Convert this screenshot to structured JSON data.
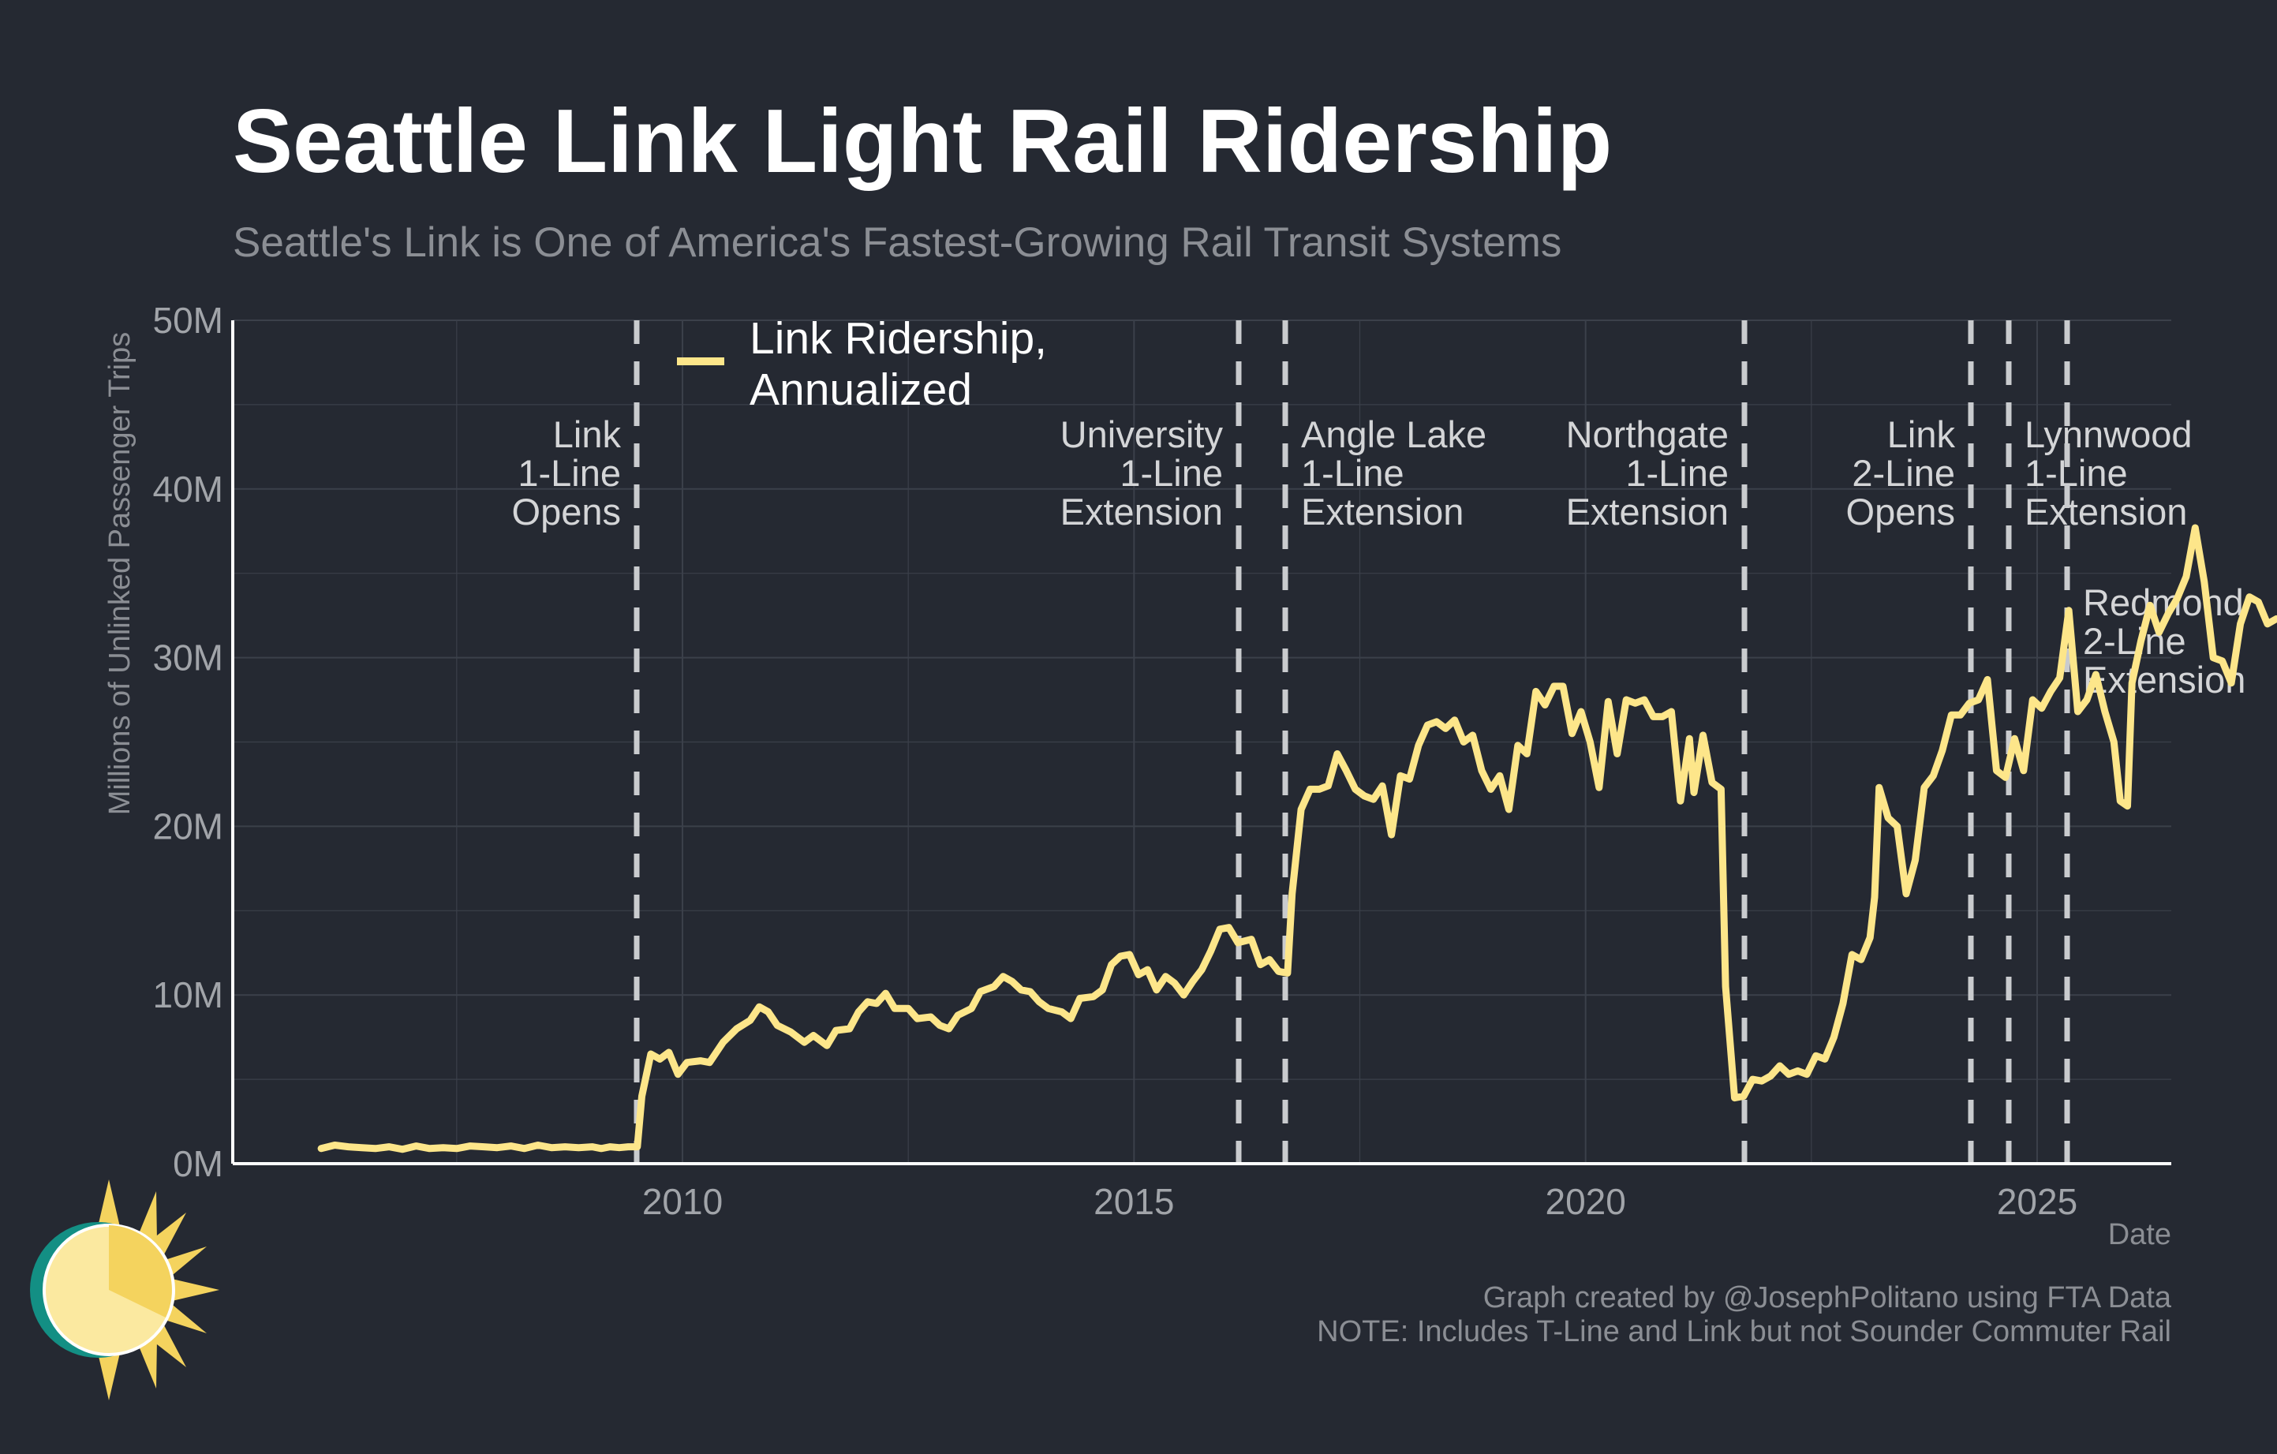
{
  "title": "Seattle Link Light Rail Ridership",
  "subtitle": "Seattle's Link is One of America's Fastest-Growing Rail Transit Systems",
  "caption_line1": "Graph created by @JosephPolitano using FTA Data",
  "caption_line2": "NOTE: Includes T-Line and Link but not Sounder Commuter Rail",
  "colors": {
    "background": "#252932",
    "line": "#fde68a",
    "event_line": "#c9cbce",
    "grid": "#3b404a",
    "axis": "#ffffff"
  },
  "logo_icon": "sun-logo-icon",
  "chart_data": {
    "type": "line",
    "xlabel": "Date",
    "ylabel": "Millions of Unlinked Passenger Trips",
    "xlim": [
      2005.0,
      2026.5
    ],
    "ylim": [
      0,
      50
    ],
    "x_ticks": [
      2010,
      2015,
      2020,
      2025
    ],
    "x_tick_labels": [
      "2010",
      "2015",
      "2020",
      "2025"
    ],
    "y_ticks": [
      0,
      10,
      20,
      30,
      40,
      50
    ],
    "y_tick_labels": [
      "0M",
      "10M",
      "20M",
      "30M",
      "40M",
      "50M"
    ],
    "grid": true,
    "legend_position": "top-left",
    "series": [
      {
        "name": "Link Ridership,\nAnnualized",
        "points": [
          [
            2006.0,
            0.9
          ],
          [
            2006.15,
            1.1
          ],
          [
            2006.3,
            1.0
          ],
          [
            2006.45,
            0.95
          ],
          [
            2006.6,
            0.9
          ],
          [
            2006.75,
            1.0
          ],
          [
            2006.9,
            0.85
          ],
          [
            2007.05,
            1.05
          ],
          [
            2007.2,
            0.9
          ],
          [
            2007.35,
            0.95
          ],
          [
            2007.5,
            0.9
          ],
          [
            2007.65,
            1.05
          ],
          [
            2007.8,
            1.0
          ],
          [
            2007.95,
            0.95
          ],
          [
            2008.1,
            1.05
          ],
          [
            2008.25,
            0.9
          ],
          [
            2008.4,
            1.1
          ],
          [
            2008.55,
            0.95
          ],
          [
            2008.7,
            1.0
          ],
          [
            2008.85,
            0.95
          ],
          [
            2009.0,
            1.0
          ],
          [
            2009.1,
            0.9
          ],
          [
            2009.2,
            1.0
          ],
          [
            2009.3,
            0.95
          ],
          [
            2009.4,
            1.0
          ],
          [
            2009.5,
            1.0
          ],
          [
            2009.55,
            4.0
          ],
          [
            2009.65,
            6.5
          ],
          [
            2009.75,
            6.2
          ],
          [
            2009.85,
            6.6
          ],
          [
            2009.95,
            5.3
          ],
          [
            2010.05,
            6.0
          ],
          [
            2010.2,
            6.1
          ],
          [
            2010.3,
            6.0
          ],
          [
            2010.45,
            7.2
          ],
          [
            2010.6,
            8.0
          ],
          [
            2010.75,
            8.5
          ],
          [
            2010.85,
            9.3
          ],
          [
            2010.95,
            9.0
          ],
          [
            2011.05,
            8.2
          ],
          [
            2011.2,
            7.8
          ],
          [
            2011.35,
            7.2
          ],
          [
            2011.45,
            7.6
          ],
          [
            2011.6,
            7.0
          ],
          [
            2011.7,
            7.9
          ],
          [
            2011.85,
            8.0
          ],
          [
            2011.95,
            9.0
          ],
          [
            2012.05,
            9.6
          ],
          [
            2012.15,
            9.5
          ],
          [
            2012.25,
            10.1
          ],
          [
            2012.35,
            9.2
          ],
          [
            2012.5,
            9.2
          ],
          [
            2012.6,
            8.6
          ],
          [
            2012.75,
            8.7
          ],
          [
            2012.85,
            8.2
          ],
          [
            2012.95,
            8.0
          ],
          [
            2013.05,
            8.8
          ],
          [
            2013.2,
            9.2
          ],
          [
            2013.3,
            10.2
          ],
          [
            2013.45,
            10.5
          ],
          [
            2013.55,
            11.1
          ],
          [
            2013.65,
            10.8
          ],
          [
            2013.75,
            10.3
          ],
          [
            2013.85,
            10.2
          ],
          [
            2013.95,
            9.6
          ],
          [
            2014.05,
            9.2
          ],
          [
            2014.2,
            9.0
          ],
          [
            2014.3,
            8.6
          ],
          [
            2014.4,
            9.8
          ],
          [
            2014.55,
            9.9
          ],
          [
            2014.65,
            10.3
          ],
          [
            2014.75,
            11.8
          ],
          [
            2014.85,
            12.3
          ],
          [
            2014.95,
            12.4
          ],
          [
            2015.05,
            11.2
          ],
          [
            2015.15,
            11.5
          ],
          [
            2015.25,
            10.3
          ],
          [
            2015.35,
            11.1
          ],
          [
            2015.45,
            10.7
          ],
          [
            2015.55,
            10.0
          ],
          [
            2015.65,
            10.8
          ],
          [
            2015.75,
            11.5
          ],
          [
            2015.85,
            12.6
          ],
          [
            2015.95,
            13.9
          ],
          [
            2016.05,
            14.0
          ],
          [
            2016.15,
            13.1
          ],
          [
            2016.3,
            13.3
          ],
          [
            2016.4,
            11.8
          ],
          [
            2016.5,
            12.1
          ],
          [
            2016.6,
            11.4
          ],
          [
            2016.7,
            11.3
          ],
          [
            2016.75,
            16.0
          ],
          [
            2016.85,
            21.0
          ],
          [
            2016.95,
            22.2
          ],
          [
            2017.05,
            22.2
          ],
          [
            2017.15,
            22.4
          ],
          [
            2017.25,
            24.3
          ],
          [
            2017.35,
            23.3
          ],
          [
            2017.45,
            22.2
          ],
          [
            2017.55,
            21.8
          ],
          [
            2017.65,
            21.6
          ],
          [
            2017.75,
            22.4
          ],
          [
            2017.85,
            19.5
          ],
          [
            2017.95,
            23.0
          ],
          [
            2018.05,
            22.8
          ],
          [
            2018.15,
            24.8
          ],
          [
            2018.25,
            26.0
          ],
          [
            2018.35,
            26.2
          ],
          [
            2018.45,
            25.8
          ],
          [
            2018.55,
            26.3
          ],
          [
            2018.65,
            25.0
          ],
          [
            2018.75,
            25.4
          ],
          [
            2018.85,
            23.3
          ],
          [
            2018.95,
            22.2
          ],
          [
            2019.05,
            23.0
          ],
          [
            2019.15,
            21.0
          ],
          [
            2019.25,
            24.8
          ],
          [
            2019.35,
            24.3
          ],
          [
            2019.45,
            28.0
          ],
          [
            2019.55,
            27.2
          ],
          [
            2019.65,
            28.3
          ],
          [
            2019.75,
            28.3
          ],
          [
            2019.85,
            25.5
          ],
          [
            2019.95,
            26.8
          ],
          [
            2020.05,
            25.0
          ],
          [
            2020.15,
            22.3
          ],
          [
            2020.25,
            27.4
          ],
          [
            2020.35,
            24.3
          ],
          [
            2020.45,
            27.5
          ],
          [
            2020.55,
            27.3
          ],
          [
            2020.65,
            27.5
          ],
          [
            2020.75,
            26.5
          ],
          [
            2020.85,
            26.5
          ],
          [
            2020.95,
            26.8
          ],
          [
            2021.05,
            21.5
          ],
          [
            2021.15,
            25.2
          ],
          [
            2021.2,
            22.0
          ],
          [
            2021.3,
            25.4
          ],
          [
            2021.4,
            22.6
          ],
          [
            2021.5,
            22.2
          ],
          [
            2021.55,
            10.5
          ],
          [
            2021.65,
            3.9
          ],
          [
            2021.75,
            4.0
          ],
          [
            2021.85,
            5.0
          ],
          [
            2021.95,
            4.9
          ],
          [
            2022.05,
            5.2
          ],
          [
            2022.15,
            5.8
          ],
          [
            2022.25,
            5.3
          ],
          [
            2022.35,
            5.5
          ],
          [
            2022.45,
            5.3
          ],
          [
            2022.55,
            6.4
          ],
          [
            2022.65,
            6.2
          ],
          [
            2022.75,
            7.5
          ],
          [
            2022.85,
            9.5
          ],
          [
            2022.95,
            12.4
          ],
          [
            2023.05,
            12.1
          ],
          [
            2023.15,
            13.4
          ],
          [
            2023.2,
            15.8
          ],
          [
            2023.25,
            22.3
          ],
          [
            2023.35,
            20.5
          ],
          [
            2023.45,
            20.0
          ],
          [
            2023.55,
            16.0
          ],
          [
            2023.65,
            18.0
          ],
          [
            2023.75,
            22.3
          ],
          [
            2023.85,
            23.0
          ],
          [
            2023.95,
            24.5
          ],
          [
            2024.05,
            26.6
          ],
          [
            2024.15,
            26.6
          ],
          [
            2024.25,
            27.3
          ],
          [
            2024.35,
            27.5
          ],
          [
            2024.45,
            28.7
          ],
          [
            2024.55,
            23.3
          ],
          [
            2024.65,
            22.9
          ],
          [
            2024.75,
            25.2
          ],
          [
            2024.85,
            23.3
          ],
          [
            2024.95,
            27.5
          ],
          [
            2025.05,
            27.0
          ],
          [
            2025.15,
            28.0
          ],
          [
            2025.25,
            28.8
          ],
          [
            2025.35,
            32.8
          ],
          [
            2025.45,
            26.8
          ],
          [
            2025.55,
            27.5
          ],
          [
            2025.65,
            29.0
          ],
          [
            2025.75,
            26.8
          ],
          [
            2025.85,
            25.0
          ],
          [
            2025.92,
            21.5
          ],
          [
            2026.0,
            21.2
          ]
        ],
        "points_note": "",
        "extension_points": [
          [
            2026.05,
            28.5
          ],
          [
            2026.15,
            31.0
          ],
          [
            2026.25,
            33.1
          ],
          [
            2026.35,
            31.5
          ],
          [
            2026.45,
            32.6
          ],
          [
            2026.55,
            33.5
          ],
          [
            2026.65,
            34.8
          ],
          [
            2026.75,
            37.7
          ],
          [
            2026.85,
            34.5
          ],
          [
            2026.95,
            30.0
          ],
          [
            2027.05,
            29.8
          ],
          [
            2027.15,
            28.5
          ],
          [
            2027.25,
            32.0
          ],
          [
            2027.35,
            33.6
          ],
          [
            2027.45,
            33.3
          ],
          [
            2027.55,
            32.0
          ],
          [
            2027.65,
            32.3
          ]
        ]
      }
    ],
    "events": [
      {
        "x": 2009.5,
        "label": [
          "Link",
          "1-Line",
          "Opens"
        ],
        "align": "right"
      },
      {
        "x": 2016.7,
        "label": [
          "University",
          "1-Line",
          "Extension"
        ],
        "align": "right"
      },
      {
        "x": 2017.2,
        "label": [
          "Angle Lake",
          "1-Line",
          "Extension"
        ],
        "align": "left"
      },
      {
        "x": 2022.2,
        "label": [
          "Northgate",
          "1-Line",
          "Extension"
        ],
        "align": "right"
      },
      {
        "x": 2024.7,
        "label": [
          "Link",
          "2-Line",
          "Opens"
        ],
        "align": "right"
      },
      {
        "x": 2025.1,
        "label": [
          "Lynnwood",
          "1-Line",
          "Extension"
        ],
        "align": "left"
      },
      {
        "x": 2025.75,
        "label": [
          "Redmond",
          "2-Line",
          "Extension"
        ],
        "align": "left"
      }
    ]
  }
}
